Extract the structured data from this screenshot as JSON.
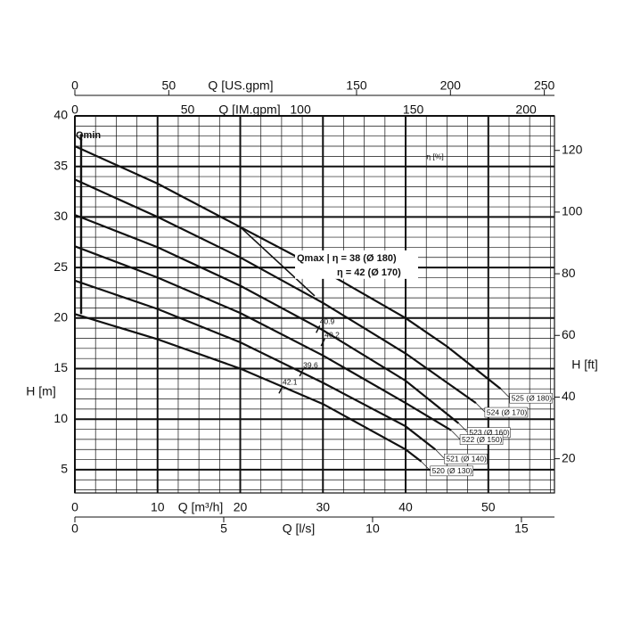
{
  "chart_data": {
    "type": "line",
    "xlabel": "Q [m³/h]",
    "ylabel": "H [m]",
    "xlim": [
      0,
      58
    ],
    "ylim": [
      2.7,
      40
    ],
    "xticks": [
      0,
      10,
      20,
      30,
      40,
      50
    ],
    "yticks": [
      5,
      10,
      15,
      20,
      25,
      30,
      35,
      40
    ],
    "x_minor_step": 2.5,
    "y_minor_step": 1,
    "grid": true,
    "color": "#111111",
    "secondary_axes": [
      {
        "label": "Q [US.gpm]",
        "position": "top",
        "lim": [
          0,
          255.4
        ],
        "ticks": [
          0,
          50,
          150,
          200,
          250
        ]
      },
      {
        "label": "Q [IM.gpm]",
        "position": "top-inner",
        "lim": [
          0,
          212.6
        ],
        "ticks": [
          0,
          50,
          100,
          150,
          200
        ]
      },
      {
        "label": "Q [l/s]",
        "position": "bottom",
        "lim": [
          0,
          16.11
        ],
        "ticks": [
          0,
          5,
          10,
          15
        ]
      }
    ],
    "y2label": "H [ft]",
    "y2lim": [
      8.9,
      131.2
    ],
    "y2ticks": [
      20,
      40,
      60,
      80,
      100,
      120
    ],
    "efficiency_label": "η [%]",
    "series": [
      {
        "name": "525 (Ø 180)",
        "x": [
          0,
          10,
          20,
          30,
          40,
          45,
          51.5
        ],
        "values": [
          37.0,
          33.3,
          29.0,
          24.7,
          20.0,
          17.2,
          13.0
        ]
      },
      {
        "name": "524 (Ø 170)",
        "x": [
          0,
          10,
          20,
          30,
          40,
          48.5
        ],
        "values": [
          33.7,
          30.0,
          26.0,
          21.5,
          16.5,
          11.6
        ]
      },
      {
        "name": "523 (Ø 160)",
        "x": [
          0,
          10,
          20,
          30,
          40,
          46.4
        ],
        "values": [
          30.2,
          27.0,
          23.2,
          18.8,
          13.8,
          9.6
        ]
      },
      {
        "name": "522 (Ø 150)",
        "x": [
          0,
          10,
          20,
          30,
          40,
          45.5
        ],
        "values": [
          27.1,
          24.0,
          20.5,
          16.3,
          11.6,
          8.9
        ]
      },
      {
        "name": "521 (Ø 140)",
        "x": [
          0,
          10,
          20,
          30,
          40,
          43.6
        ],
        "values": [
          23.7,
          20.9,
          17.6,
          13.6,
          9.3,
          7.0
        ]
      },
      {
        "name": "520 (Ø 130)",
        "x": [
          0,
          10,
          20,
          30,
          40,
          41.9
        ],
        "values": [
          20.4,
          17.9,
          15.0,
          11.5,
          7.0,
          5.8
        ]
      }
    ],
    "efficiency_points": [
      {
        "q": 29.4,
        "h": 18.9,
        "eta": 40.9
      },
      {
        "q": 30.0,
        "h": 17.6,
        "eta": 40.2
      },
      {
        "q": 27.4,
        "h": 14.6,
        "eta": 39.6
      },
      {
        "q": 24.9,
        "h": 12.9,
        "eta": 42.1
      }
    ],
    "qmax": {
      "labels": [
        "Qmax | η = 38 (Ø 180)",
        "η = 42 (Ø 170)"
      ],
      "x": [
        20,
        29
      ],
      "values": [
        29.0,
        22.2
      ]
    },
    "qmin": {
      "label": "Qmin",
      "x": [
        0.75,
        0.75
      ],
      "values": [
        38.2,
        20.4
      ]
    }
  }
}
